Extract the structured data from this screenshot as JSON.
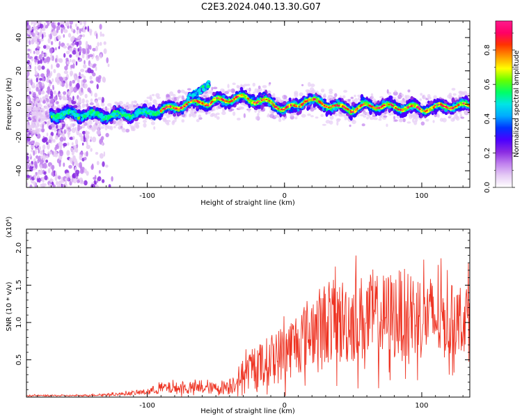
{
  "title": "C2E3.2024.040.13.30.G07",
  "chart_data": [
    {
      "type": "heatmap",
      "xlabel": "Height of straight line (km)",
      "ylabel": "Frequency (Hz)",
      "xlim": [
        -188,
        135
      ],
      "ylim": [
        -50,
        50
      ],
      "xticks": [
        -100,
        0,
        100
      ],
      "yticks": [
        -40,
        -20,
        0,
        20,
        40
      ],
      "grid": false,
      "colorbar": {
        "label": "Normalized spectral amplitude",
        "range": [
          0.0,
          0.97
        ],
        "ticks": [
          0.0,
          0.2,
          0.4,
          0.6,
          0.8
        ],
        "colormap": [
          "#ffffff",
          "#e6ccf5",
          "#c080ee",
          "#8a2be2",
          "#4b00ff",
          "#0033ff",
          "#00aaff",
          "#00e5e5",
          "#00ff66",
          "#66ff00",
          "#ffff00",
          "#ff9900",
          "#ff3300",
          "#ff0066",
          "#ff1a8c"
        ]
      },
      "ridge": {
        "x": [
          -188,
          -170,
          -150,
          -130,
          -110,
          -90,
          -80,
          -70,
          -60,
          -55,
          -50,
          -40,
          -30,
          -20,
          -10,
          0,
          10,
          15,
          20,
          30,
          40,
          50,
          60,
          70,
          80,
          90,
          100,
          110,
          120,
          130,
          135
        ],
        "f": [
          -6,
          -6,
          -6,
          -7,
          -6,
          -4,
          -2,
          0,
          2,
          0,
          2,
          3,
          4,
          2,
          1,
          -3,
          -1,
          3,
          2,
          0,
          -2,
          -3,
          -1,
          -1,
          -2,
          -2,
          -3,
          -2,
          -1,
          -1,
          -1
        ]
      },
      "branch": {
        "x": [
          -70,
          -65,
          -60,
          -55
        ],
        "f": [
          4,
          6,
          9,
          12
        ]
      },
      "noise_region": {
        "x_max": -125,
        "f_range": [
          -50,
          50
        ]
      }
    },
    {
      "type": "line",
      "xlabel": "Height of straight line (km)",
      "ylabel": "SNR (10 * v/v)",
      "yscale_label": "(x10⁴)",
      "xlim": [
        -188,
        135
      ],
      "ylim": [
        0,
        2.25
      ],
      "xticks": [
        -100,
        0,
        100
      ],
      "yticks": [
        0.5,
        1.0,
        1.5,
        2.0
      ],
      "ytick_labels": [
        "0.5",
        "1.0",
        "1.5",
        "2.0"
      ],
      "grid": false,
      "series": [
        {
          "color": "#ee3322",
          "x": [
            -188,
            -150,
            -120,
            -100,
            -90,
            -70,
            -50,
            -40,
            -30,
            -20,
            -10,
            0,
            10,
            20,
            30,
            40,
            50,
            60,
            70,
            80,
            90,
            100,
            110,
            120,
            135
          ],
          "mean": [
            0.02,
            0.02,
            0.04,
            0.07,
            0.12,
            0.12,
            0.12,
            0.15,
            0.3,
            0.4,
            0.5,
            0.6,
            0.75,
            0.9,
            1.0,
            1.0,
            1.05,
            1.05,
            1.05,
            1.1,
            1.1,
            1.1,
            1.05,
            1.0,
            1.1
          ],
          "spread": [
            0.01,
            0.01,
            0.02,
            0.04,
            0.08,
            0.08,
            0.08,
            0.12,
            0.2,
            0.3,
            0.35,
            0.4,
            0.45,
            0.5,
            0.55,
            0.6,
            0.6,
            0.6,
            0.6,
            0.62,
            0.62,
            0.6,
            0.55,
            0.5,
            0.45
          ]
        }
      ]
    }
  ]
}
